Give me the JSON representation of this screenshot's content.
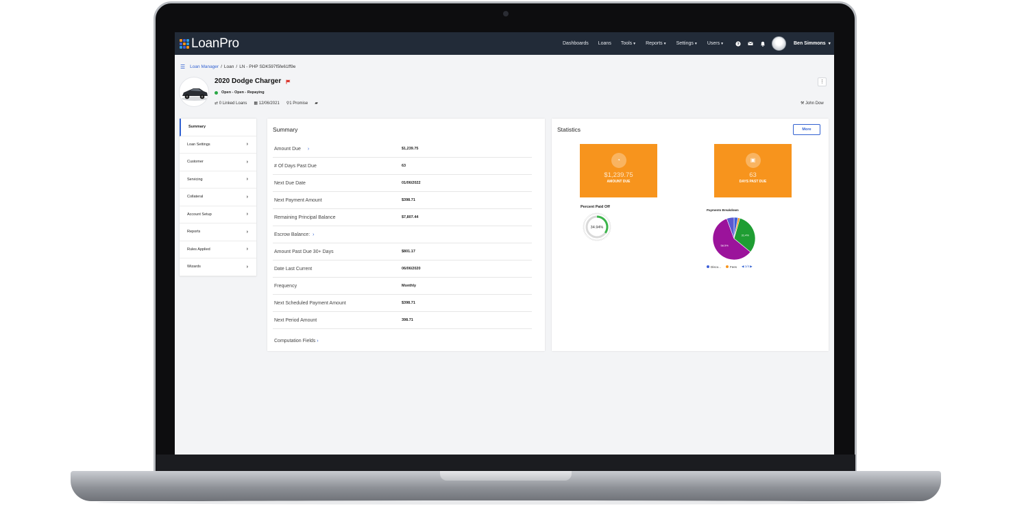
{
  "app": {
    "logo_text": "LoanPro"
  },
  "nav": {
    "items": [
      {
        "label": "Dashboards",
        "caret": ""
      },
      {
        "label": "Loans",
        "caret": ""
      },
      {
        "label": "Tools",
        "caret": "▼"
      },
      {
        "label": "Reports",
        "caret": "▼"
      },
      {
        "label": "Settings",
        "caret": "▼"
      },
      {
        "label": "Users",
        "caret": "▼"
      }
    ],
    "icons": [
      "help-icon",
      "mail-icon",
      "bell-icon"
    ],
    "user_name": "Ben Simmons",
    "user_caret": "▾"
  },
  "breadcrumb": {
    "root": "Loan Manager",
    "sep1": "/",
    "middle": "Loan",
    "sep2": "/",
    "current": "LN - PHP SDK597f5fe61ff9e"
  },
  "loan": {
    "title": "2020 Dodge Charger",
    "status": "Open - Open - Repaying",
    "linked_loans": "0 Linked Loans",
    "date": "12/06/2021",
    "promise": "1 Promise",
    "owner": "John Dow"
  },
  "sidemenu": {
    "items": [
      {
        "label": "Summary",
        "active": true
      },
      {
        "label": "Loan Settings"
      },
      {
        "label": "Customer"
      },
      {
        "label": "Servicing"
      },
      {
        "label": "Collateral"
      },
      {
        "label": "Account Setup"
      },
      {
        "label": "Reports"
      },
      {
        "label": "Rules Applied"
      },
      {
        "label": "Wizards"
      }
    ]
  },
  "summary": {
    "title": "Summary",
    "rows": [
      {
        "label": "Amount Due",
        "value": "$1,239.75",
        "arrow": "›"
      },
      {
        "label": "# Of Days Past Due",
        "value": "63"
      },
      {
        "label": "Next Due Date",
        "value": "01/06/2022"
      },
      {
        "label": "Next Payment Amount",
        "value": "$398.71"
      },
      {
        "label": "Remaining Principal Balance",
        "value": "$7,807.44"
      },
      {
        "label": "Escrow Balance:",
        "value": "",
        "arrow": "›"
      },
      {
        "label": "Amount Past Due 30+ Days",
        "value": "$801.17"
      },
      {
        "label": "Date Last Current",
        "value": "06/06/2020"
      },
      {
        "label": "Frequency",
        "value": "Monthly"
      },
      {
        "label": "Next Scheduled Payment Amount",
        "value": "$398.71"
      },
      {
        "label": "Next Period Amount",
        "value": "398.71"
      }
    ],
    "computation_label": "Computation Fields",
    "computation_arrow": "›"
  },
  "statistics": {
    "title": "Statistics",
    "more_label": "More",
    "tiles": [
      {
        "value": "$1,239.75",
        "label": "AMOUNT DUE"
      },
      {
        "value": "63",
        "label": "DAYS PAST DUE"
      }
    ],
    "percent_paid": {
      "caption": "Percent Paid Off",
      "value": "34.94%",
      "fraction": 0.3494
    },
    "payments_breakdown": {
      "caption": "Payments Breakdown",
      "legend": [
        {
          "label": "Disco...",
          "color": "#3e5fd8"
        },
        {
          "label": "Fees",
          "color": "#f7941d"
        }
      ],
      "pager": "1/4",
      "pager_prev": "◀",
      "pager_next": "▶"
    }
  },
  "chart_data": {
    "type": "pie",
    "title": "Payments Breakdown",
    "slices": [
      {
        "label": "Disco...",
        "value": 3.0,
        "color": "#3e5fd8",
        "display": ""
      },
      {
        "label": "Fees",
        "value": 1.5,
        "color": "#f7941d",
        "display": ""
      },
      {
        "label": "",
        "value": 31.4,
        "color": "#1f9d33",
        "display": "31.4%"
      },
      {
        "label": "",
        "value": 58.5,
        "color": "#9b139b",
        "display": "58.5%"
      },
      {
        "label": "",
        "value": 5.6,
        "color": "#5a5ad0",
        "display": ""
      }
    ],
    "legend_position": "bottom"
  },
  "colors": {
    "topbar": "#222b38",
    "accent": "#2f5fd0",
    "tile": "#f7941d",
    "status_green": "#2aa845",
    "flag_red": "#d9261c"
  }
}
